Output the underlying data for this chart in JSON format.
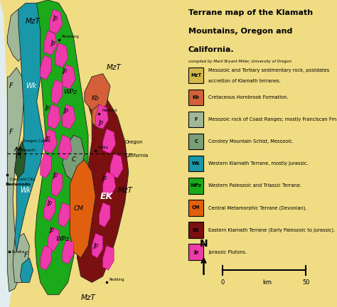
{
  "title_line1": "Terrane map of the Klamath",
  "title_line2": "Mountains, Oregon and",
  "title_line3": "California.",
  "subtitle": "compiled by Marli Bryant Miller, University of Oregon",
  "bg_color": "#F0DC82",
  "legend_bg": "#FFFFFF",
  "legend_items": [
    {
      "code": "MzT",
      "color": "#D4B84A",
      "text": "Mesozoic and Tertiary sedimentary rock, postdates\naccretion of Klamath terranes."
    },
    {
      "code": "Kb",
      "color": "#D4603A",
      "text": "Cretaceous Hornbrook Formation."
    },
    {
      "code": "F",
      "color": "#A0B898",
      "text": "Mesozoic rock of Coast Ranges; mostly Franciscan Fm"
    },
    {
      "code": "C",
      "color": "#7A9E78",
      "text": "Condrey Mountain Schist, Mesozoic."
    },
    {
      "code": "Wk",
      "color": "#1898A8",
      "text": "Western Klamath Terrane, mostly Jurassic."
    },
    {
      "code": "WPz",
      "color": "#1AAA1A",
      "text": "Western Paleozoic and Triassic Terrane."
    },
    {
      "code": "CM",
      "color": "#E06010",
      "text": "Central Metamorphic Terrane (Devonian)."
    },
    {
      "code": "EK",
      "color": "#7A1010",
      "text": "Eastern Klamath Terrane (Early Paleozoic to Jurassic)."
    },
    {
      "code": "Jp",
      "color": "#EE3AAA",
      "text": "Jurassic Plutons."
    }
  ],
  "colors": {
    "MzT": "#D4B84A",
    "Kb": "#D4603A",
    "F": "#A0B898",
    "C": "#7A9E78",
    "Wk": "#1898A8",
    "WPz": "#1AAA1A",
    "CM": "#E06010",
    "EK": "#7A1010",
    "Jp": "#EE3AAA",
    "bg": "#F0DC82",
    "white": "#FFFFFF",
    "dark_green": "#2A5A2A"
  }
}
